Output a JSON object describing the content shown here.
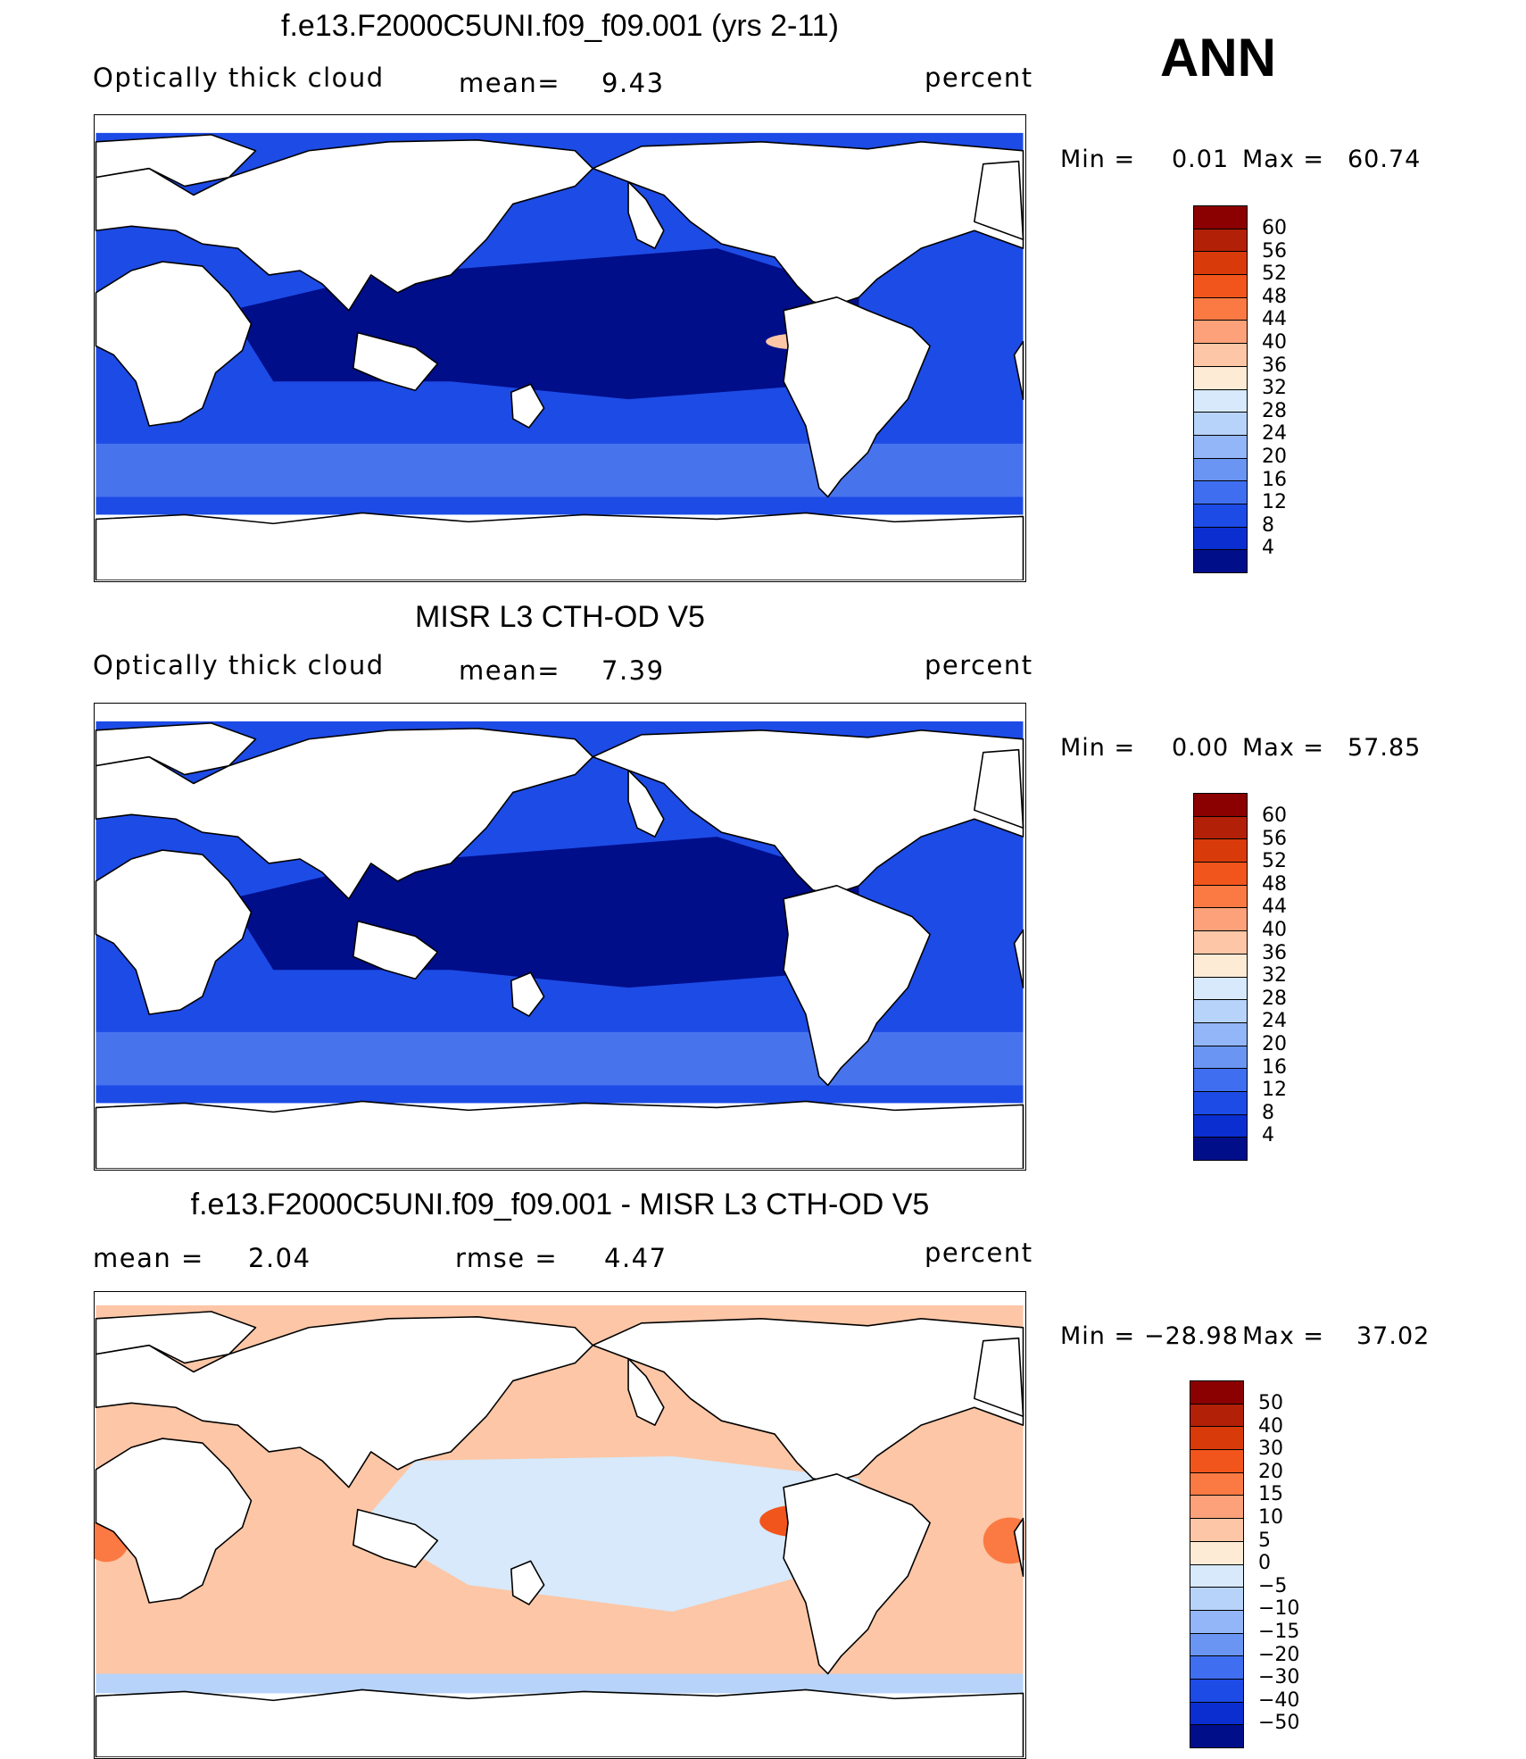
{
  "season": "ANN",
  "panels": [
    {
      "title": "f.e13.F2000C5UNI.f09_f09.001 (yrs 2-11)",
      "left_label": "Optically thick cloud",
      "stat_label": "mean=",
      "stat_value": "9.43",
      "stat2_label": "",
      "stat2_value": "",
      "units": "percent",
      "min_text": "Min =",
      "min_value": "0.01",
      "max_text": "Max =",
      "max_value": "60.74",
      "colorbar": {
        "colors": [
          "#8b0000",
          "#b22008",
          "#d83a0a",
          "#f2551c",
          "#fb7a44",
          "#fca17a",
          "#fdc6a6",
          "#feebd6",
          "#d7e9fb",
          "#b7d3fa",
          "#92b6f7",
          "#6a95f2",
          "#3f6ef0",
          "#1d4be6",
          "#0a2ed0",
          "#000e8a"
        ],
        "labels": [
          "60",
          "56",
          "52",
          "48",
          "44",
          "40",
          "36",
          "32",
          "28",
          "24",
          "20",
          "16",
          "12",
          "8",
          "4"
        ]
      }
    },
    {
      "title": "MISR L3 CTH-OD V5",
      "left_label": "Optically thick cloud",
      "stat_label": "mean=",
      "stat_value": "7.39",
      "stat2_label": "",
      "stat2_value": "",
      "units": "percent",
      "min_text": "Min =",
      "min_value": "0.00",
      "max_text": "Max =",
      "max_value": "57.85",
      "colorbar": {
        "colors": [
          "#8b0000",
          "#b22008",
          "#d83a0a",
          "#f2551c",
          "#fb7a44",
          "#fca17a",
          "#fdc6a6",
          "#feebd6",
          "#d7e9fb",
          "#b7d3fa",
          "#92b6f7",
          "#6a95f2",
          "#3f6ef0",
          "#1d4be6",
          "#0a2ed0",
          "#000e8a"
        ],
        "labels": [
          "60",
          "56",
          "52",
          "48",
          "44",
          "40",
          "36",
          "32",
          "28",
          "24",
          "20",
          "16",
          "12",
          "8",
          "4"
        ]
      }
    },
    {
      "title": "f.e13.F2000C5UNI.f09_f09.001 - MISR L3 CTH-OD V5",
      "left_label": "",
      "stat_label": "mean =",
      "stat_value": "2.04",
      "stat2_label": "rmse =",
      "stat2_value": "4.47",
      "units": "percent",
      "min_text": "Min =",
      "min_value": "−28.98",
      "max_text": "Max =",
      "max_value": "37.02",
      "colorbar": {
        "colors": [
          "#8b0000",
          "#b22008",
          "#d83a0a",
          "#f2551c",
          "#fb7a44",
          "#fca17a",
          "#fdc6a6",
          "#feebd6",
          "#d7e9fb",
          "#b7d3fa",
          "#92b6f7",
          "#6a95f2",
          "#3f6ef0",
          "#1d4be6",
          "#0a2ed0",
          "#000e8a"
        ],
        "labels": [
          "50",
          "40",
          "30",
          "20",
          "15",
          "10",
          "5",
          "0",
          "−5",
          "−10",
          "−15",
          "−20",
          "−30",
          "−40",
          "−50"
        ]
      }
    }
  ],
  "colors": {
    "ocean_low": "#000e8a",
    "ocean_mid": "#1d4be6",
    "ocean_light": "#6a95f2",
    "diff_pos": "#fdc6a6",
    "diff_neg": "#d7e9fb",
    "hotspot": "#f2551c",
    "land": "#ffffff"
  }
}
